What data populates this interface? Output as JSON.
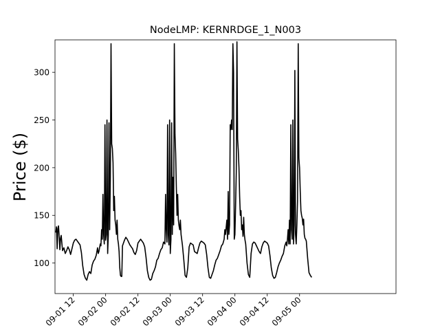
{
  "chart_data": {
    "type": "line",
    "title": "NodeLMP: KERNRDGE_1_N003",
    "xlabel": "",
    "ylabel": "Price ($)",
    "x_unit": "hours since 09-01 00",
    "xlim": [
      5.2,
      131.8
    ],
    "ylim": [
      68,
      334
    ],
    "grid": false,
    "legend": "none",
    "line_color": "#000000",
    "y_ticks": [
      100,
      150,
      200,
      250,
      300
    ],
    "x_ticks": [
      {
        "hour": 12,
        "label": "09-01 12"
      },
      {
        "hour": 24,
        "label": "09-02 00"
      },
      {
        "hour": 36,
        "label": "09-02 12"
      },
      {
        "hour": 48,
        "label": "09-03 00"
      },
      {
        "hour": 60,
        "label": "09-03 12"
      },
      {
        "hour": 72,
        "label": "09-04 00"
      },
      {
        "hour": 84,
        "label": "09-04 12"
      },
      {
        "hour": 96,
        "label": "09-05 00"
      }
    ],
    "series": [
      {
        "name": "",
        "points": [
          [
            5.5,
            132
          ],
          [
            5.75,
            138
          ],
          [
            6.0,
            115
          ],
          [
            6.25,
            136
          ],
          [
            6.5,
            139
          ],
          [
            6.75,
            128
          ],
          [
            7.0,
            114
          ],
          [
            7.25,
            126
          ],
          [
            7.5,
            129
          ],
          [
            7.75,
            121
          ],
          [
            8.0,
            113
          ],
          [
            8.5,
            116
          ],
          [
            9.0,
            110
          ],
          [
            9.5,
            113
          ],
          [
            10.0,
            117
          ],
          [
            10.5,
            114
          ],
          [
            11.0,
            109
          ],
          [
            11.5,
            115
          ],
          [
            12.0,
            121
          ],
          [
            12.5,
            124
          ],
          [
            13.0,
            125
          ],
          [
            13.5,
            123
          ],
          [
            14.0,
            121
          ],
          [
            14.5,
            119
          ],
          [
            15.0,
            111
          ],
          [
            15.5,
            97
          ],
          [
            16.0,
            88
          ],
          [
            16.5,
            84
          ],
          [
            17.0,
            82
          ],
          [
            17.5,
            88
          ],
          [
            18.0,
            91
          ],
          [
            18.5,
            89
          ],
          [
            19.0,
            98
          ],
          [
            19.5,
            102
          ],
          [
            20.0,
            104
          ],
          [
            20.5,
            108
          ],
          [
            21.0,
            116
          ],
          [
            21.25,
            110
          ],
          [
            21.5,
            112
          ],
          [
            22.0,
            120
          ],
          [
            22.25,
            118
          ],
          [
            22.5,
            135
          ],
          [
            22.75,
            125
          ],
          [
            23.0,
            172
          ],
          [
            23.25,
            130
          ],
          [
            23.5,
            120
          ],
          [
            23.75,
            245
          ],
          [
            24.0,
            124
          ],
          [
            24.25,
            130
          ],
          [
            24.5,
            250
          ],
          [
            24.75,
            110
          ],
          [
            25.0,
            130
          ],
          [
            25.25,
            247
          ],
          [
            25.5,
            135
          ],
          [
            25.75,
            190
          ],
          [
            26.0,
            330
          ],
          [
            26.25,
            225
          ],
          [
            26.5,
            220
          ],
          [
            26.75,
            205
          ],
          [
            27.0,
            155
          ],
          [
            27.25,
            170
          ],
          [
            27.5,
            145
          ],
          [
            27.75,
            140
          ],
          [
            28.0,
            130
          ],
          [
            28.25,
            145
          ],
          [
            28.5,
            125
          ],
          [
            28.75,
            120
          ],
          [
            29.0,
            112
          ],
          [
            29.25,
            95
          ],
          [
            29.5,
            87
          ],
          [
            29.75,
            86
          ],
          [
            30.0,
            86
          ],
          [
            30.25,
            118
          ],
          [
            30.5,
            120
          ],
          [
            31.0,
            124
          ],
          [
            31.5,
            127
          ],
          [
            32.0,
            125
          ],
          [
            32.5,
            122
          ],
          [
            33.0,
            119
          ],
          [
            33.5,
            117
          ],
          [
            34.0,
            115
          ],
          [
            34.5,
            111
          ],
          [
            35.0,
            109
          ],
          [
            35.5,
            113
          ],
          [
            36.0,
            121
          ],
          [
            36.5,
            123
          ],
          [
            37.0,
            125
          ],
          [
            37.5,
            123
          ],
          [
            38.0,
            121
          ],
          [
            38.5,
            117
          ],
          [
            39.0,
            106
          ],
          [
            39.5,
            92
          ],
          [
            40.0,
            85
          ],
          [
            40.5,
            82
          ],
          [
            41.0,
            83
          ],
          [
            41.5,
            89
          ],
          [
            42.0,
            92
          ],
          [
            42.5,
            96
          ],
          [
            43.0,
            103
          ],
          [
            43.5,
            105
          ],
          [
            44.0,
            110
          ],
          [
            44.5,
            114
          ],
          [
            45.0,
            116
          ],
          [
            45.5,
            122
          ],
          [
            46.0,
            120
          ],
          [
            46.25,
            172
          ],
          [
            46.5,
            135
          ],
          [
            46.75,
            122
          ],
          [
            47.0,
            245
          ],
          [
            47.25,
            130
          ],
          [
            47.5,
            119
          ],
          [
            47.75,
            250
          ],
          [
            48.0,
            110
          ],
          [
            48.25,
            125
          ],
          [
            48.5,
            247
          ],
          [
            48.75,
            130
          ],
          [
            49.0,
            190
          ],
          [
            49.25,
            140
          ],
          [
            49.5,
            330
          ],
          [
            49.75,
            235
          ],
          [
            50.0,
            215
          ],
          [
            50.25,
            180
          ],
          [
            50.5,
            150
          ],
          [
            50.75,
            172
          ],
          [
            51.0,
            145
          ],
          [
            51.25,
            139
          ],
          [
            51.5,
            135
          ],
          [
            51.75,
            145
          ],
          [
            52.0,
            130
          ],
          [
            52.5,
            119
          ],
          [
            53.0,
            104
          ],
          [
            53.5,
            87
          ],
          [
            54.0,
            85
          ],
          [
            54.5,
            95
          ],
          [
            55.0,
            117
          ],
          [
            55.5,
            121
          ],
          [
            56.0,
            120
          ],
          [
            56.5,
            119
          ],
          [
            57.0,
            112
          ],
          [
            57.5,
            111
          ],
          [
            58.0,
            110
          ],
          [
            58.5,
            116
          ],
          [
            59.0,
            121
          ],
          [
            59.5,
            123
          ],
          [
            60.0,
            122
          ],
          [
            60.5,
            121
          ],
          [
            61.0,
            119
          ],
          [
            61.5,
            109
          ],
          [
            62.0,
            95
          ],
          [
            62.5,
            85
          ],
          [
            63.0,
            84
          ],
          [
            63.5,
            88
          ],
          [
            64.0,
            92
          ],
          [
            64.5,
            98
          ],
          [
            65.0,
            103
          ],
          [
            65.5,
            105
          ],
          [
            66.0,
            109
          ],
          [
            66.5,
            113
          ],
          [
            67.0,
            118
          ],
          [
            67.5,
            120
          ],
          [
            68.0,
            125
          ],
          [
            68.25,
            135
          ],
          [
            68.5,
            130
          ],
          [
            69.0,
            145
          ],
          [
            69.25,
            125
          ],
          [
            69.5,
            175
          ],
          [
            69.75,
            130
          ],
          [
            70.0,
            140
          ],
          [
            70.25,
            245
          ],
          [
            70.5,
            240
          ],
          [
            70.75,
            250
          ],
          [
            71.0,
            240
          ],
          [
            71.25,
            330
          ],
          [
            71.5,
            300
          ],
          [
            71.75,
            125
          ],
          [
            72.0,
            130
          ],
          [
            72.25,
            160
          ],
          [
            72.5,
            195
          ],
          [
            72.75,
            332
          ],
          [
            73.0,
            230
          ],
          [
            73.25,
            218
          ],
          [
            73.5,
            200
          ],
          [
            73.75,
            170
          ],
          [
            74.0,
            150
          ],
          [
            74.25,
            155
          ],
          [
            74.5,
            135
          ],
          [
            74.75,
            140
          ],
          [
            75.0,
            128
          ],
          [
            75.25,
            148
          ],
          [
            75.5,
            130
          ],
          [
            75.75,
            124
          ],
          [
            76.0,
            120
          ],
          [
            76.5,
            100
          ],
          [
            77.0,
            88
          ],
          [
            77.5,
            85
          ],
          [
            78.0,
            110
          ],
          [
            78.5,
            120
          ],
          [
            79.0,
            122
          ],
          [
            79.5,
            121
          ],
          [
            80.0,
            118
          ],
          [
            80.5,
            115
          ],
          [
            81.0,
            112
          ],
          [
            81.5,
            110
          ],
          [
            82.0,
            117
          ],
          [
            82.5,
            121
          ],
          [
            83.0,
            123
          ],
          [
            83.5,
            122
          ],
          [
            84.0,
            121
          ],
          [
            84.5,
            118
          ],
          [
            85.0,
            108
          ],
          [
            85.5,
            95
          ],
          [
            86.0,
            87
          ],
          [
            86.5,
            84
          ],
          [
            87.0,
            85
          ],
          [
            87.5,
            90
          ],
          [
            88.0,
            96
          ],
          [
            88.5,
            100
          ],
          [
            89.0,
            103
          ],
          [
            89.5,
            107
          ],
          [
            90.0,
            110
          ],
          [
            90.5,
            118
          ],
          [
            91.0,
            122
          ],
          [
            91.25,
            118
          ],
          [
            91.5,
            125
          ],
          [
            91.75,
            135
          ],
          [
            92.0,
            120
          ],
          [
            92.25,
            145
          ],
          [
            92.5,
            120
          ],
          [
            92.75,
            245
          ],
          [
            93.0,
            135
          ],
          [
            93.25,
            125
          ],
          [
            93.5,
            250
          ],
          [
            93.75,
            120
          ],
          [
            94.0,
            140
          ],
          [
            94.25,
            302
          ],
          [
            94.5,
            130
          ],
          [
            94.75,
            120
          ],
          [
            95.0,
            140
          ],
          [
            95.25,
            165
          ],
          [
            95.5,
            330
          ],
          [
            95.75,
            210
          ],
          [
            96.0,
            200
          ],
          [
            96.25,
            175
          ],
          [
            96.5,
            155
          ],
          [
            96.75,
            150
          ],
          [
            97.0,
            147
          ],
          [
            97.25,
            140
          ],
          [
            97.5,
            146
          ],
          [
            97.75,
            130
          ],
          [
            98.0,
            126
          ],
          [
            98.25,
            125
          ],
          [
            98.5,
            123
          ],
          [
            99.0,
            105
          ],
          [
            99.5,
            90
          ],
          [
            100.0,
            87
          ],
          [
            100.5,
            85
          ]
        ]
      }
    ]
  }
}
